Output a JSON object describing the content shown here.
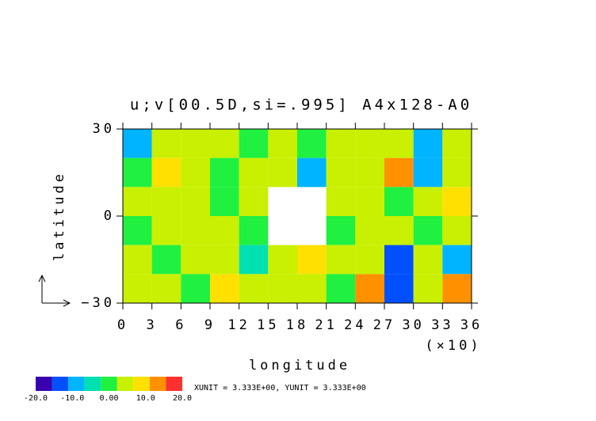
{
  "chart_data": {
    "type": "contour",
    "title": "u;v[00.5D,si=.995] A4x128-A0",
    "x_label": "longitude",
    "y_label": "latitude",
    "x_multiplier": "(×10)",
    "xlim": [
      0,
      36
    ],
    "xticks": [
      0,
      3,
      6,
      9,
      12,
      15,
      18,
      21,
      24,
      27,
      30,
      33,
      36
    ],
    "ylim": [
      -30,
      30
    ],
    "yticks": [
      {
        "value": -30,
        "label": "−30"
      },
      0,
      30
    ],
    "x": [
      0,
      3,
      6,
      9,
      12,
      15,
      18,
      21,
      24,
      27,
      30,
      33,
      36
    ],
    "y": [
      30,
      20,
      10,
      0,
      -10,
      -20,
      -30
    ],
    "z": [
      [
        -10,
        3,
        5,
        3,
        2,
        4,
        2,
        6,
        3,
        4,
        -8,
        3
      ],
      [
        2,
        8,
        3,
        2,
        5,
        3,
        -10,
        6,
        3,
        12,
        -8,
        4
      ],
      [
        3,
        4,
        6,
        2,
        3,
        null,
        null,
        3,
        6,
        2,
        3,
        8
      ],
      [
        2,
        3,
        4,
        5,
        2,
        null,
        null,
        2,
        3,
        4,
        2,
        3
      ],
      [
        3,
        2,
        3,
        4,
        -6,
        3,
        8,
        3,
        4,
        -12,
        3,
        -10
      ],
      [
        4,
        3,
        2,
        10,
        3,
        4,
        3,
        2,
        12,
        -14,
        6,
        12
      ]
    ],
    "colorbar": {
      "colors": [
        "#3a00b0",
        "#0050ff",
        "#00b4ff",
        "#00e0b0",
        "#20f040",
        "#c8f000",
        "#ffe000",
        "#ff9000",
        "#ff3030"
      ],
      "ticks": [
        {
          "value": -20,
          "label": "-20.0"
        },
        {
          "value": -10,
          "label": "-10.0"
        },
        {
          "value": 0,
          "label": "0.00"
        },
        {
          "value": 10,
          "label": "10.0"
        },
        {
          "value": 20,
          "label": "20.0"
        }
      ]
    },
    "unit_note": "XUNIT = 3.333E+00, YUNIT = 3.333E+00"
  }
}
